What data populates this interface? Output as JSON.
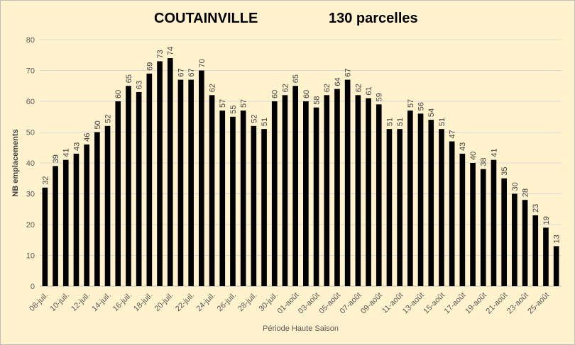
{
  "chart_data": {
    "type": "bar",
    "title": "COUTAINVILLE",
    "subtitle": "130 parcelles",
    "xlabel": "Période Haute Saison",
    "ylabel": "NB emplacements",
    "ylim": [
      0,
      80
    ],
    "yticks": [
      0,
      10,
      20,
      30,
      40,
      50,
      60,
      70,
      80
    ],
    "grid": true,
    "bar_color": "#000000",
    "background_color": "#fff2cc",
    "categories": [
      "08-juil.",
      "09-juil.",
      "10-juil.",
      "11-juil.",
      "12-juil.",
      "13-juil.",
      "14-juil.",
      "15-juil.",
      "16-juil.",
      "17-juil.",
      "18-juil.",
      "19-juil.",
      "20-juil.",
      "21-juil.",
      "22-juil.",
      "23-juil.",
      "24-juil.",
      "25-juil.",
      "26-juil.",
      "27-juil.",
      "28-juil.",
      "29-juil.",
      "30-juil.",
      "31-juil.",
      "01-août",
      "02-août",
      "03-août",
      "04-août",
      "05-août",
      "06-août",
      "07-août",
      "08-août",
      "09-août",
      "10-août",
      "11-août",
      "12-août",
      "13-août",
      "14-août",
      "15-août",
      "16-août",
      "17-août",
      "18-août",
      "19-août",
      "20-août",
      "21-août",
      "22-août",
      "23-août",
      "24-août",
      "25-août",
      "26-août"
    ],
    "visible_tick_labels": [
      "08-juil.",
      "10-juil.",
      "12-juil.",
      "14-juil.",
      "16-juil.",
      "18-juil.",
      "20-juil.",
      "22-juil.",
      "24-juil.",
      "26-juil.",
      "28-juil.",
      "30-juil.",
      "01-août",
      "03-août",
      "05-août",
      "07-août",
      "09-août",
      "11-août",
      "13-août",
      "15-août",
      "17-août",
      "19-août",
      "21-août",
      "23-août",
      "25-août"
    ],
    "values": [
      32,
      39,
      41,
      43,
      46,
      50,
      52,
      60,
      65,
      63,
      69,
      73,
      74,
      67,
      67,
      70,
      62,
      57,
      55,
      57,
      52,
      51,
      60,
      62,
      65,
      60,
      58,
      62,
      64,
      67,
      62,
      61,
      59,
      51,
      51,
      57,
      56,
      54,
      51,
      47,
      43,
      40,
      38,
      41,
      35,
      30,
      28,
      23,
      19,
      13
    ]
  }
}
